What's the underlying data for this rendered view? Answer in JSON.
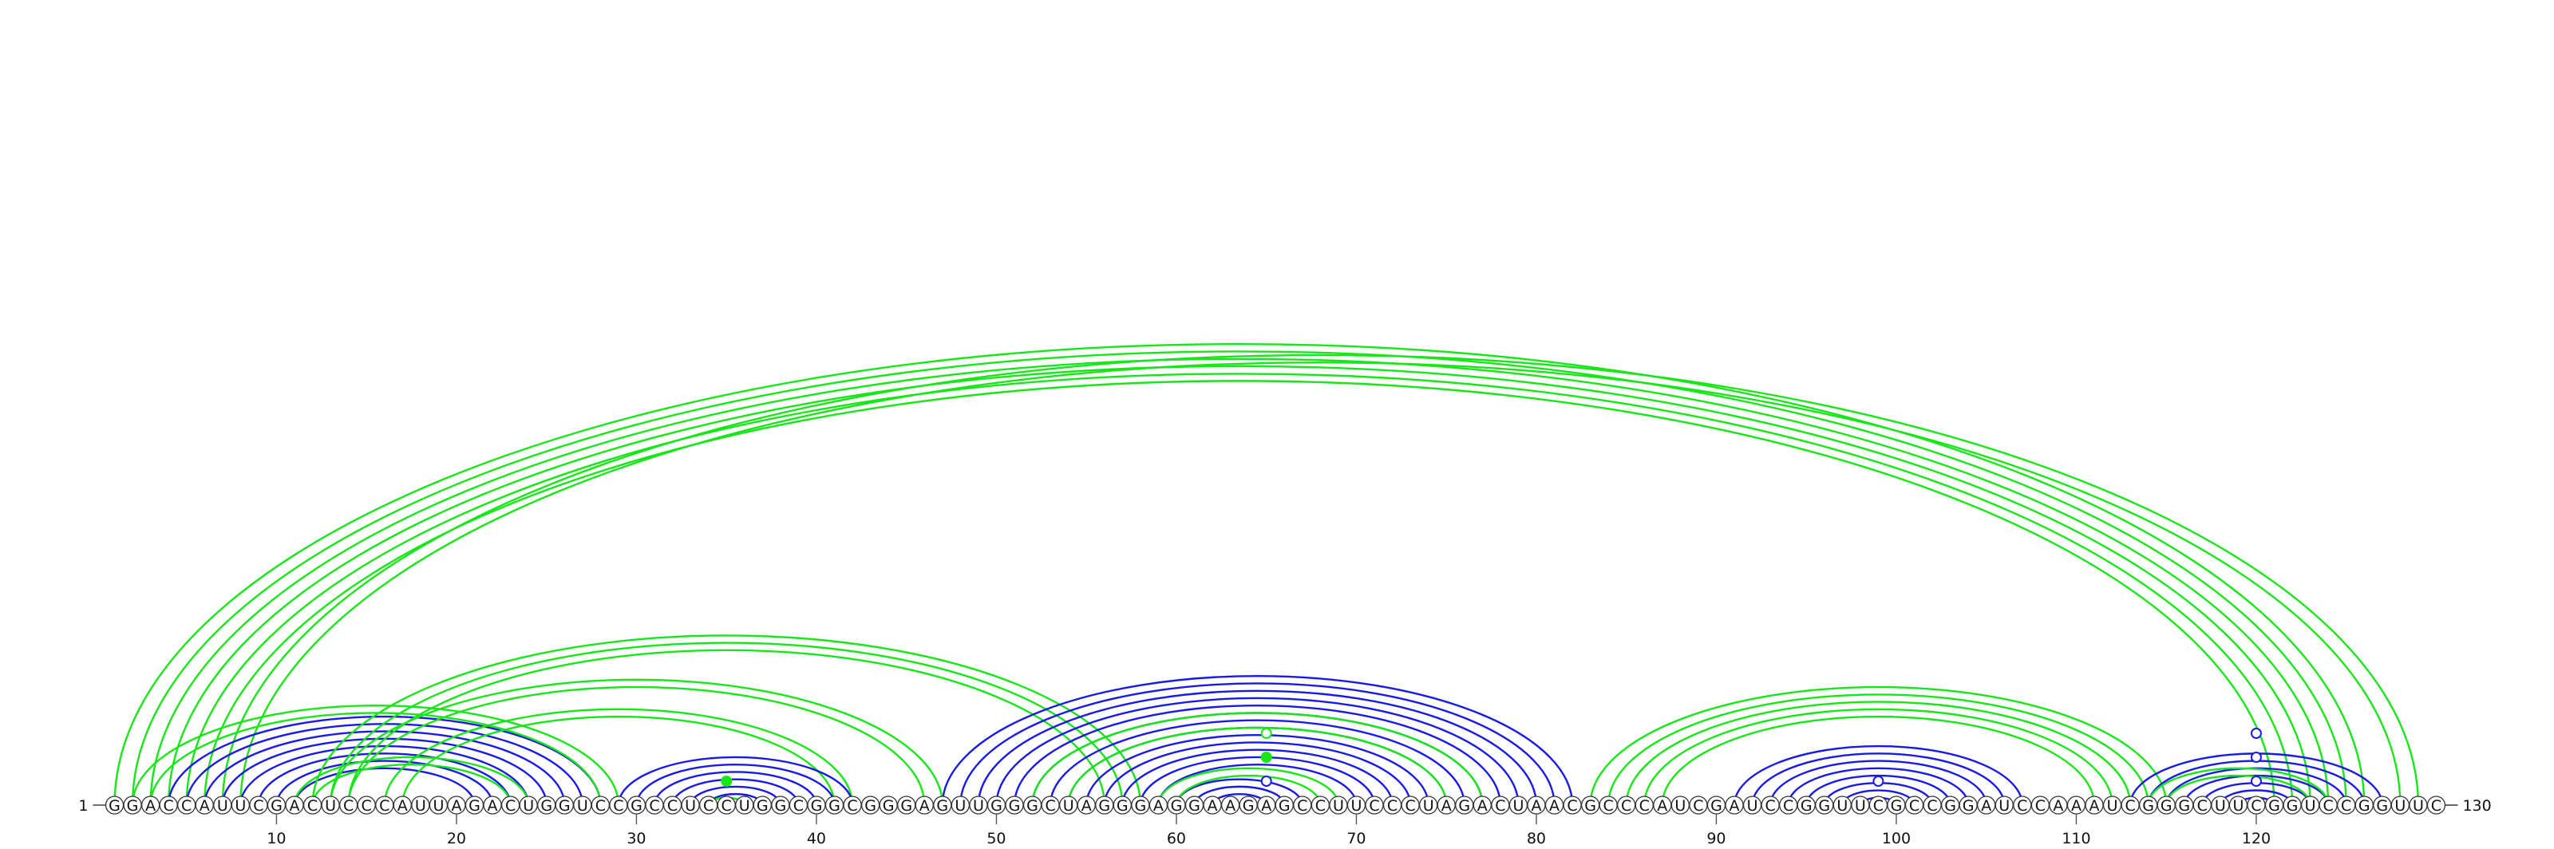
{
  "sequence": "GGACCAUUCGACUCCCAUUAGACUGGUCCGCCUCCUGGCGGCGGGAGUUGGGCUAGGGAGGAAGAGCCUUCCCUAGACUAACGCCCAUCGAUCCGGUUCGCCGGAUCCAAAUCGGGCUUCGGUCCGGUUC",
  "start_label": "1",
  "end_label": "130",
  "ticks": [
    "10",
    "20",
    "30",
    "40",
    "50",
    "60",
    "70",
    "80",
    "90",
    "100",
    "110",
    "120"
  ],
  "colors": {
    "blue": "#1a1ae6",
    "green": "#19e619",
    "outline": "#333333"
  },
  "chart_data": {
    "type": "arc_diagram",
    "length": 130,
    "helices": [
      {
        "color": "green",
        "pairs": [
          [
            1,
            126
          ],
          [
            2,
            125
          ],
          [
            3,
            124
          ],
          [
            4,
            123
          ],
          [
            5,
            122
          ],
          [
            6,
            121
          ]
        ]
      },
      {
        "color": "green",
        "pairs": [
          [
            7,
            129
          ],
          [
            8,
            128
          ]
        ]
      },
      {
        "color": "blue",
        "pairs": [
          [
            4,
            28
          ],
          [
            5,
            27
          ],
          [
            6,
            26
          ],
          [
            7,
            25
          ],
          [
            8,
            24
          ],
          [
            9,
            23
          ],
          [
            10,
            22
          ],
          [
            11,
            21
          ]
        ]
      },
      {
        "color": "green",
        "pairs": [
          [
            2,
            29
          ],
          [
            3,
            28
          ]
        ]
      },
      {
        "color": "green",
        "pairs": [
          [
            11,
            24
          ],
          [
            12,
            23
          ]
        ]
      },
      {
        "color": "green",
        "pairs": [
          [
            12,
            58
          ],
          [
            13,
            57
          ],
          [
            14,
            56
          ]
        ]
      },
      {
        "color": "green",
        "pairs": [
          [
            13,
            47
          ],
          [
            14,
            46
          ]
        ]
      },
      {
        "color": "green",
        "pairs": [
          [
            16,
            42
          ],
          [
            17,
            41
          ]
        ]
      },
      {
        "color": "blue",
        "pairs": [
          [
            29,
            42
          ],
          [
            30,
            41
          ],
          [
            31,
            40
          ],
          [
            32,
            39
          ],
          [
            33,
            38
          ],
          [
            34,
            37
          ]
        ]
      },
      {
        "color": "green",
        "pairs": [
          [
            34,
            36
          ]
        ]
      },
      {
        "color": "blue",
        "pairs": [
          [
            47,
            82
          ],
          [
            48,
            81
          ],
          [
            49,
            80
          ],
          [
            50,
            79
          ],
          [
            51,
            78
          ],
          [
            52,
            77
          ],
          [
            53,
            76
          ],
          [
            54,
            75
          ],
          [
            55,
            74
          ],
          [
            56,
            73
          ],
          [
            57,
            72
          ],
          [
            58,
            71
          ],
          [
            59,
            70
          ]
        ]
      },
      {
        "color": "green",
        "pairs": [
          [
            52,
            77
          ],
          [
            54,
            75
          ]
        ]
      },
      {
        "color": "blue",
        "pairs": [
          [
            60,
            67
          ],
          [
            61,
            66
          ],
          [
            62,
            65
          ]
        ]
      },
      {
        "color": "green",
        "pairs": [
          [
            59,
            69
          ],
          [
            60,
            68
          ]
        ]
      },
      {
        "color": "green",
        "pairs": [
          [
            83,
            115
          ],
          [
            84,
            114
          ],
          [
            85,
            113
          ],
          [
            86,
            112
          ],
          [
            87,
            111
          ]
        ]
      },
      {
        "color": "blue",
        "pairs": [
          [
            91,
            107
          ],
          [
            92,
            106
          ],
          [
            93,
            105
          ],
          [
            94,
            104
          ],
          [
            95,
            103
          ],
          [
            96,
            102
          ],
          [
            97,
            101
          ],
          [
            98,
            100
          ]
        ]
      },
      {
        "color": "blue",
        "pairs": [
          [
            113,
            127
          ],
          [
            114,
            126
          ],
          [
            115,
            125
          ],
          [
            116,
            124
          ],
          [
            117,
            123
          ],
          [
            118,
            122
          ],
          [
            119,
            121
          ]
        ]
      },
      {
        "color": "green",
        "pairs": [
          [
            114,
            124
          ],
          [
            115,
            123
          ]
        ]
      }
    ],
    "dots": [
      {
        "pos": 35,
        "color": "green",
        "filled": true
      },
      {
        "pos": 65,
        "color": "blue",
        "filled": false
      },
      {
        "pos": 65,
        "color": "green",
        "filled": true
      },
      {
        "pos": 65,
        "color": "green",
        "filled": false
      },
      {
        "pos": 99,
        "color": "blue",
        "filled": false
      },
      {
        "pos": 120,
        "color": "blue",
        "filled": false
      },
      {
        "pos": 120,
        "color": "blue",
        "filled": false
      },
      {
        "pos": 120,
        "color": "blue",
        "filled": false
      }
    ]
  }
}
